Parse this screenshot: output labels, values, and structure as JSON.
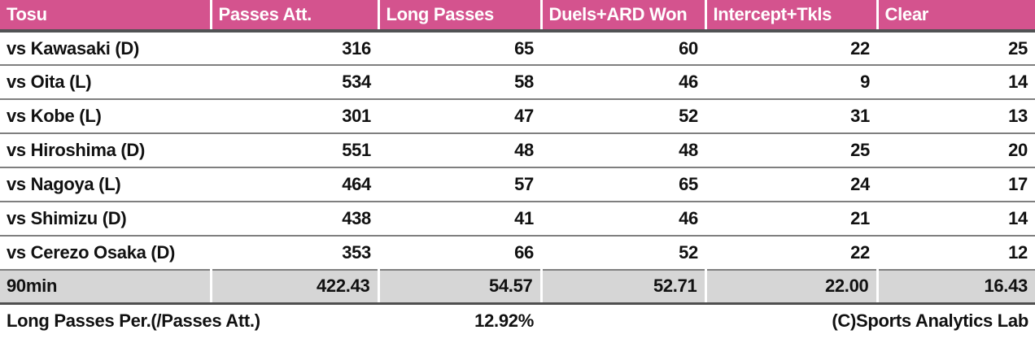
{
  "colors": {
    "header_bg": "#d4538e",
    "summary_bg": "#d6d6d6",
    "row_line": "#7f7f7f",
    "header_line": "#515254"
  },
  "chart_data": {
    "type": "table",
    "title": "Tosu",
    "columns": [
      "Tosu",
      "Passes Att.",
      "Long Passes",
      "Duels+ARD Won",
      "Intercept+Tkls",
      "Clear"
    ],
    "rows": [
      {
        "opponent": "vs Kawasaki (D)",
        "values": [
          316,
          65,
          60,
          22,
          25
        ]
      },
      {
        "opponent": "vs Oita (L)",
        "values": [
          534,
          58,
          46,
          9,
          14
        ]
      },
      {
        "opponent": "vs Kobe (L)",
        "values": [
          301,
          47,
          52,
          31,
          13
        ]
      },
      {
        "opponent": "vs Hiroshima (D)",
        "values": [
          551,
          48,
          48,
          25,
          20
        ]
      },
      {
        "opponent": "vs Nagoya (L)",
        "values": [
          464,
          57,
          65,
          24,
          17
        ]
      },
      {
        "opponent": "vs Shimizu (D)",
        "values": [
          438,
          41,
          46,
          21,
          14
        ]
      },
      {
        "opponent": "vs Cerezo Osaka (D)",
        "values": [
          353,
          66,
          52,
          22,
          12
        ]
      }
    ],
    "summary": {
      "label": "90min",
      "values": [
        "422.43",
        "54.57",
        "52.71",
        "22.00",
        "16.43"
      ]
    },
    "footer": {
      "metric_label": "Long Passes Per.(/Passes Att.)",
      "metric_value": "12.92%",
      "credit": "(C)Sports Analytics Lab"
    }
  }
}
